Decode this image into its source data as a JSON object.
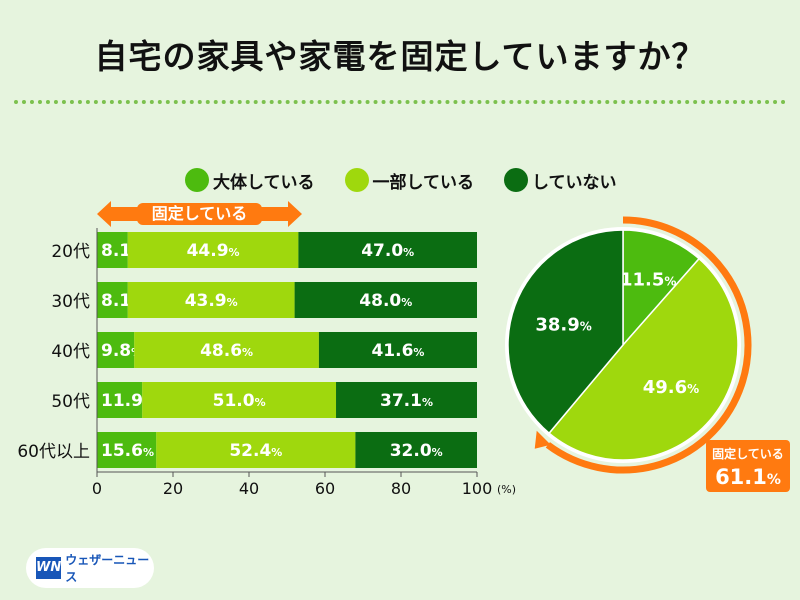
{
  "title": "自宅の家具や家電を固定していますか？",
  "colors": {
    "fully": "#4dbb0f",
    "partly": "#9fd80d",
    "none": "#0b6d12",
    "accent": "#ff7a10",
    "background": "#e6f4de"
  },
  "fixed_label": "固定している",
  "pie_fixed": {
    "label": "固定している",
    "value": "61.1",
    "unit": "%"
  },
  "logo": {
    "mark": "WN",
    "text": "ウェザーニュース"
  },
  "chart_data": [
    {
      "type": "bar",
      "orientation": "horizontal",
      "stacked": true,
      "categories": [
        "20代",
        "30代",
        "40代",
        "50代",
        "60代以上"
      ],
      "series": [
        {
          "name": "大体している",
          "values": [
            8.1,
            8.1,
            9.8,
            11.9,
            15.6
          ]
        },
        {
          "name": "一部している",
          "values": [
            44.9,
            43.9,
            48.6,
            51.0,
            52.4
          ]
        },
        {
          "name": "していない",
          "values": [
            47.0,
            48.0,
            41.6,
            37.1,
            32.0
          ]
        }
      ],
      "xlim": [
        0,
        100
      ],
      "xticks": [
        0,
        20,
        40,
        60,
        80,
        100
      ],
      "xunit": "(%)",
      "legend": "top"
    },
    {
      "type": "pie",
      "labels": [
        "大体している",
        "一部している",
        "していない"
      ],
      "values": [
        11.5,
        49.6,
        38.9
      ],
      "unit": "%"
    }
  ]
}
